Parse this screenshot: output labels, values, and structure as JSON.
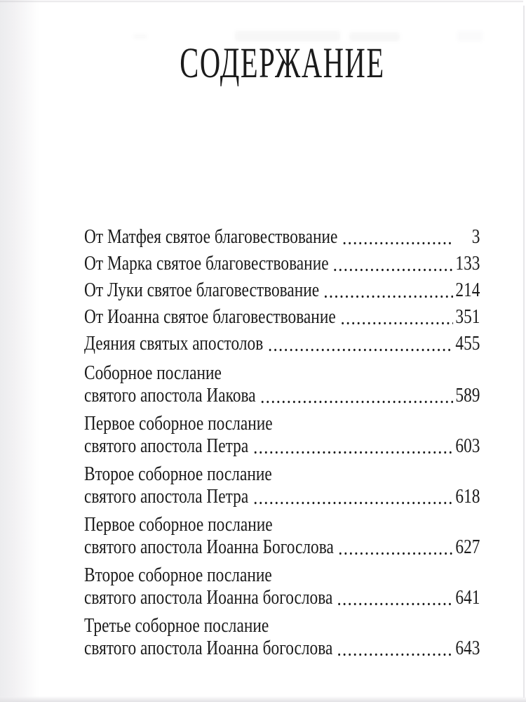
{
  "title": "СОДЕРЖАНИЕ",
  "colors": {
    "paper": "#ffffff",
    "ink": "#1b1b1b"
  },
  "toc": {
    "entries": [
      {
        "lines": [
          "От Матфея святое благовествование"
        ],
        "page": "3"
      },
      {
        "lines": [
          "От Марка святое благовествование"
        ],
        "page": "133"
      },
      {
        "lines": [
          "От Луки святое благовествование"
        ],
        "page": "214"
      },
      {
        "lines": [
          "От Иоанна святое благовествование"
        ],
        "page": "351"
      },
      {
        "lines": [
          "Деяния святых апостолов"
        ],
        "page": "455"
      },
      {
        "lines": [
          "Соборное послание",
          "святого апостола Иакова"
        ],
        "page": "589"
      },
      {
        "lines": [
          "Первое соборное послание",
          "святого апостола Петра"
        ],
        "page": "603"
      },
      {
        "lines": [
          "Второе соборное послание",
          "святого апостола Петра"
        ],
        "page": "618"
      },
      {
        "lines": [
          "Первое соборное послание",
          "святого апостола Иоанна Богослова"
        ],
        "page": "627"
      },
      {
        "lines": [
          "Второе соборное послание",
          "святого апостола Иоанна богослова"
        ],
        "page": "641"
      },
      {
        "lines": [
          "Третье соборное послание",
          "святого апостола Иоанна богослова"
        ],
        "page": "643"
      }
    ]
  }
}
